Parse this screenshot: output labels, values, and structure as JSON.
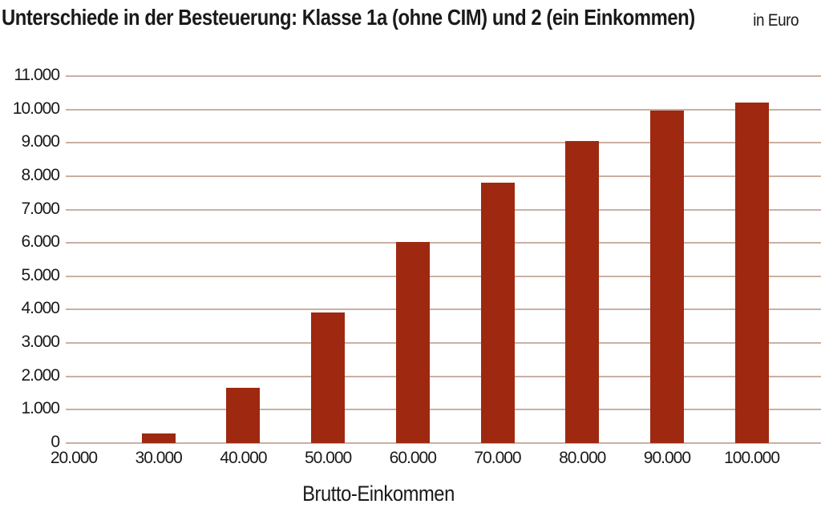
{
  "chart_data": {
    "type": "bar",
    "title": "Unterschiede in der Besteuerung: Klasse 1a (ohne CIM) und 2 (ein Einkommen)",
    "unit_label": "in Euro",
    "xlabel": "Brutto-Einkommen",
    "ylabel": "",
    "categories": [
      "20.000",
      "30.000",
      "40.000",
      "50.000",
      "60.000",
      "70.000",
      "80.000",
      "90.000",
      "100.000"
    ],
    "values": [
      0,
      280,
      1650,
      3920,
      6030,
      7800,
      9060,
      9960,
      10200
    ],
    "ylim": [
      0,
      11000
    ],
    "ytick_interval": 1000,
    "ytick_labels_top_to_bottom": [
      "11.000",
      "10.000",
      "9.000",
      "8.000",
      "7.000",
      "6.000",
      "5.000",
      "4.000",
      "3.000",
      "2.000",
      "1.000",
      "0"
    ],
    "grid": true,
    "legend": false,
    "colors": {
      "bar": "#9E2910",
      "gridline": "#C9B0A3",
      "text": "#1A1A1A",
      "background": "#FFFFFF"
    }
  }
}
